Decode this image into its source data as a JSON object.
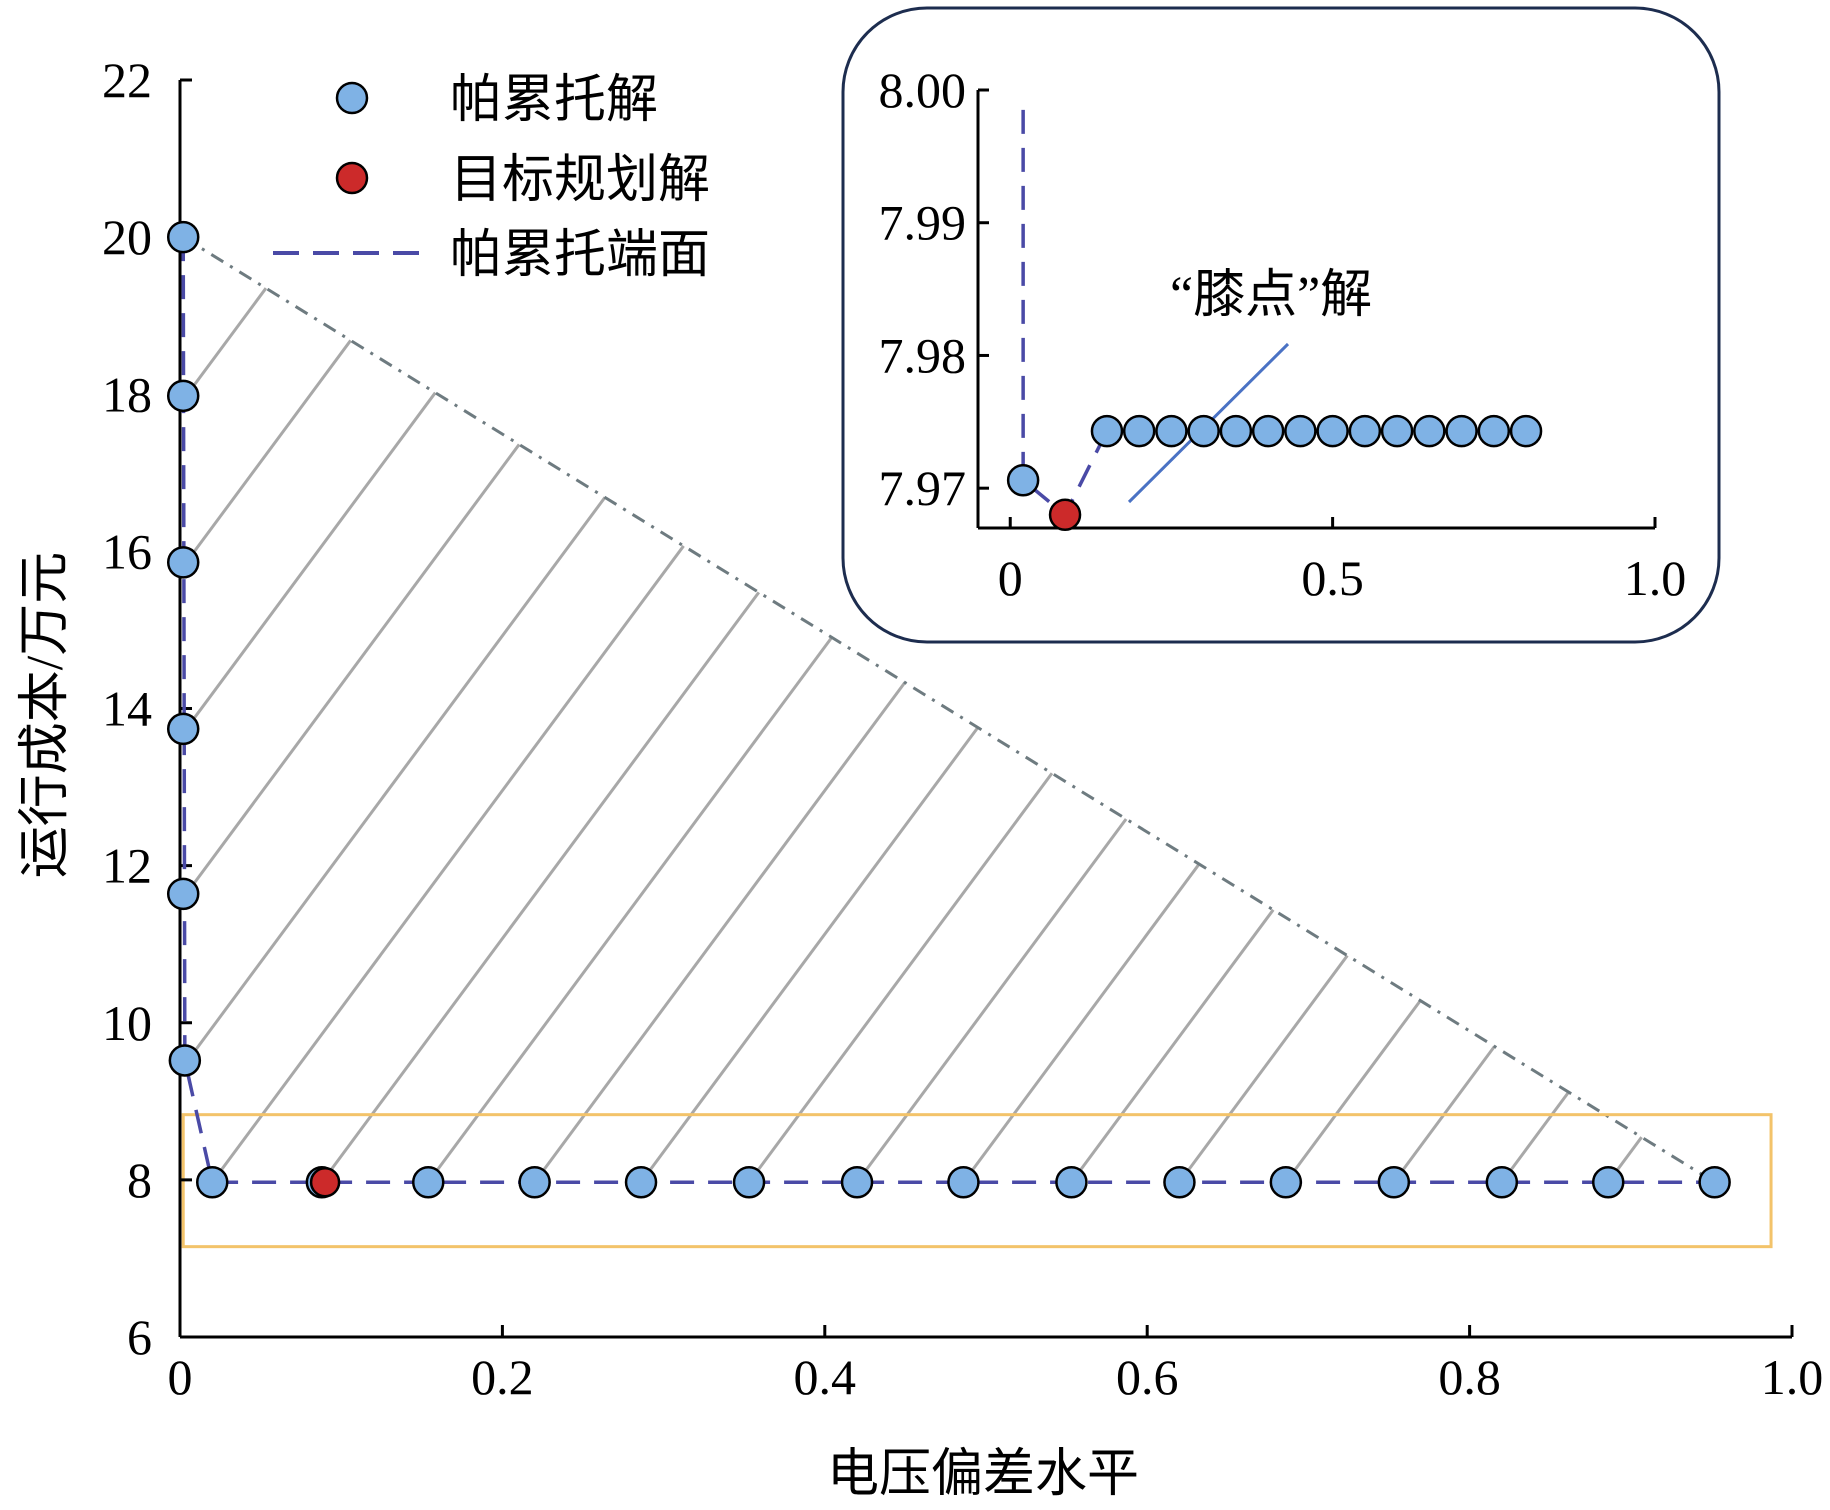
{
  "colors": {
    "pareto_point": "#7fb2e5",
    "pareto_stroke": "#000000",
    "target_point": "#cc2a2a",
    "front_line": "#4a4aa6",
    "hatch": "#a8a8a8",
    "boundary": "#6e7b80",
    "highlight_box": "#f3c36a",
    "inset_border": "#1d2d4f",
    "annotation_line": "#4a72c4"
  },
  "legend": {
    "pareto": "帕累托解",
    "target": "目标规划解",
    "front": "帕累托端面"
  },
  "annotation": {
    "knee": "“膝点”解"
  },
  "chart_data": [
    {
      "type": "scatter",
      "title": "",
      "xlabel": "电压偏差水平",
      "ylabel": "运行成本/万元",
      "xlim": [
        0,
        1.0
      ],
      "ylim": [
        6,
        22
      ],
      "xticks": [
        0,
        0.2,
        0.4,
        0.6,
        0.8,
        1.0
      ],
      "xtick_labels": [
        "0",
        "0.2",
        "0.4",
        "0.6",
        "0.8",
        "1.0"
      ],
      "yticks": [
        6,
        8,
        10,
        12,
        14,
        16,
        18,
        20,
        22
      ],
      "ytick_labels": [
        "6",
        "8",
        "10",
        "12",
        "14",
        "16",
        "18",
        "20",
        "22"
      ],
      "grid": false,
      "legend_position": "top",
      "series": [
        {
          "name": "帕累托解",
          "x": [
            0.002,
            0.002,
            0.002,
            0.002,
            0.002,
            0.003,
            0.02,
            0.088,
            0.154,
            0.22,
            0.286,
            0.353,
            0.42,
            0.486,
            0.553,
            0.62,
            0.686,
            0.753,
            0.82,
            0.886,
            0.952
          ],
          "y": [
            20.0,
            17.98,
            15.86,
            13.74,
            11.64,
            9.52,
            7.97,
            7.97,
            7.97,
            7.97,
            7.97,
            7.97,
            7.97,
            7.97,
            7.97,
            7.97,
            7.97,
            7.97,
            7.97,
            7.97,
            7.97
          ]
        },
        {
          "name": "目标规划解",
          "x": [
            0.09
          ],
          "y": [
            7.97
          ]
        },
        {
          "name": "帕累托端面",
          "x": [
            0.002,
            0.003,
            0.02,
            0.154,
            0.952
          ],
          "y": [
            20.0,
            9.52,
            7.97,
            7.97,
            7.97
          ]
        }
      ],
      "dominated_region": {
        "boundary_from": [
          0.002,
          20.0
        ],
        "boundary_to": [
          0.952,
          7.97
        ]
      },
      "highlight_box": {
        "x": [
          0.002,
          0.987
        ],
        "y": [
          7.15,
          8.83
        ]
      }
    },
    {
      "type": "scatter",
      "title": "",
      "xlabel": "",
      "ylabel": "",
      "xlim": [
        -0.05,
        1.0
      ],
      "ylim": [
        7.967,
        8.0
      ],
      "xticks": [
        0,
        0.5,
        1.0
      ],
      "xtick_labels": [
        "0",
        "0.5",
        "1.0"
      ],
      "yticks": [
        7.97,
        7.98,
        7.99,
        8.0
      ],
      "ytick_labels": [
        "7.97",
        "7.98",
        "7.99",
        "8.00"
      ],
      "grid": false,
      "series": [
        {
          "name": "帕累托解",
          "x": [
            0.02,
            0.15,
            0.2,
            0.25,
            0.3,
            0.35,
            0.4,
            0.45,
            0.5,
            0.55,
            0.6,
            0.65,
            0.7,
            0.75,
            0.8
          ],
          "y": [
            7.9706,
            7.9743,
            7.9743,
            7.9743,
            7.9743,
            7.9743,
            7.9743,
            7.9743,
            7.9743,
            7.9743,
            7.9743,
            7.9743,
            7.9743,
            7.9743,
            7.9743
          ]
        },
        {
          "name": "目标规划解",
          "x": [
            0.085
          ],
          "y": [
            7.968
          ]
        },
        {
          "name": "帕累托端面",
          "x": [
            0.02,
            0.02,
            0.085,
            0.15,
            0.8
          ],
          "y": [
            7.9985,
            7.9706,
            7.968,
            7.9743,
            7.9743
          ]
        }
      ]
    }
  ]
}
